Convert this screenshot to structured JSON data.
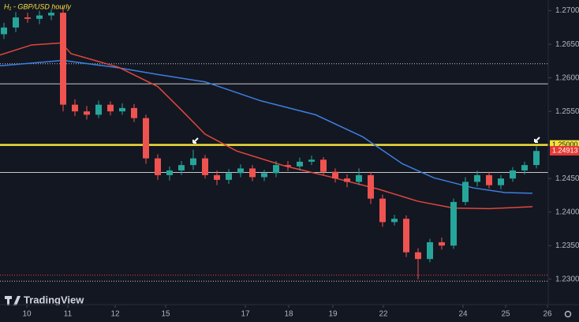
{
  "chart_data": {
    "type": "candlestick",
    "title": "H₁ - GBP/USD hourly",
    "watermark": "TradingView",
    "xlim": [
      0,
      139
    ],
    "ylim": [
      1.2262,
      1.2716
    ],
    "xticks": [
      {
        "value": 6.8,
        "label": "10"
      },
      {
        "value": 17.2,
        "label": "11"
      },
      {
        "value": 29.2,
        "label": "12"
      },
      {
        "value": 42,
        "label": "15"
      },
      {
        "value": 62.2,
        "label": "17"
      },
      {
        "value": 73.2,
        "label": "18"
      },
      {
        "value": 84.4,
        "label": "19"
      },
      {
        "value": 97.2,
        "label": "22"
      },
      {
        "value": 117.4,
        "label": "24"
      },
      {
        "value": 128.2,
        "label": "25"
      },
      {
        "value": 138.8,
        "label": "26"
      }
    ],
    "yticks": [
      {
        "value": 1.27,
        "label": "1.27000"
      },
      {
        "value": 1.265,
        "label": "1.26500"
      },
      {
        "value": 1.26,
        "label": "1.26000"
      },
      {
        "value": 1.255,
        "label": "1.25500"
      },
      {
        "value": 1.25,
        "label": "1.25000"
      },
      {
        "value": 1.245,
        "label": "1.24500"
      },
      {
        "value": 1.24,
        "label": "1.24000"
      },
      {
        "value": 1.235,
        "label": "1.23500"
      },
      {
        "value": 1.23,
        "label": "1.23000"
      }
    ],
    "up_color": "#26a69a",
    "down_color": "#ef5350",
    "x": [
      1,
      4,
      7,
      10,
      13,
      16,
      19,
      22,
      25,
      28,
      31,
      34,
      37,
      40,
      43,
      46,
      49,
      52,
      55,
      58,
      61,
      64,
      67,
      70,
      73,
      76,
      79,
      82,
      85,
      88,
      91,
      94,
      97,
      100,
      103,
      106,
      109,
      112,
      115,
      118,
      121,
      124,
      127,
      130,
      133,
      136
    ],
    "open": [
      1.2665,
      1.2675,
      1.269,
      1.2688,
      1.2693,
      1.2697,
      1.256,
      1.255,
      1.2545,
      1.256,
      1.255,
      1.2555,
      1.254,
      1.248,
      1.2455,
      1.2462,
      1.247,
      1.248,
      1.2455,
      1.2448,
      1.2458,
      1.2465,
      1.2452,
      1.2458,
      1.247,
      1.2468,
      1.2475,
      1.2478,
      1.246,
      1.245,
      1.2445,
      1.2455,
      1.242,
      1.2385,
      1.239,
      1.234,
      1.233,
      1.2355,
      1.235,
      1.2415,
      1.2445,
      1.2455,
      1.244,
      1.245,
      1.2462,
      1.247
    ],
    "high": [
      1.2682,
      1.2698,
      1.2697,
      1.27,
      1.2702,
      1.2705,
      1.2568,
      1.2558,
      1.2566,
      1.2565,
      1.2562,
      1.2561,
      1.2545,
      1.2486,
      1.2468,
      1.2476,
      1.2493,
      1.2485,
      1.2462,
      1.2464,
      1.2471,
      1.247,
      1.2463,
      1.2476,
      1.2476,
      1.2481,
      1.2484,
      1.2482,
      1.2465,
      1.2456,
      1.2465,
      1.246,
      1.2426,
      1.2396,
      1.2395,
      1.2346,
      1.236,
      1.2362,
      1.242,
      1.2452,
      1.2462,
      1.246,
      1.2455,
      1.2467,
      1.2475,
      1.2498
    ],
    "low": [
      1.2658,
      1.2668,
      1.2682,
      1.268,
      1.2686,
      1.255,
      1.2543,
      1.2538,
      1.254,
      1.2544,
      1.2545,
      1.2534,
      1.2472,
      1.2448,
      1.2447,
      1.2455,
      1.2463,
      1.245,
      1.244,
      1.2442,
      1.2452,
      1.2446,
      1.2446,
      1.2452,
      1.2461,
      1.2462,
      1.247,
      1.2455,
      1.2444,
      1.2437,
      1.244,
      1.2412,
      1.2378,
      1.238,
      1.2333,
      1.23,
      1.2325,
      1.2344,
      1.2345,
      1.241,
      1.2438,
      1.2435,
      1.2434,
      1.2445,
      1.2456,
      1.2465
    ],
    "close": [
      1.2675,
      1.269,
      1.2688,
      1.2693,
      1.2697,
      1.256,
      1.255,
      1.2545,
      1.256,
      1.255,
      1.2555,
      1.254,
      1.248,
      1.2455,
      1.2462,
      1.247,
      1.248,
      1.2455,
      1.2448,
      1.2458,
      1.2465,
      1.2452,
      1.2458,
      1.247,
      1.2468,
      1.2475,
      1.2478,
      1.246,
      1.245,
      1.2445,
      1.2455,
      1.242,
      1.2385,
      1.239,
      1.234,
      1.233,
      1.2355,
      1.235,
      1.2415,
      1.2445,
      1.2455,
      1.244,
      1.245,
      1.2462,
      1.247,
      1.2491
    ],
    "lines": [
      {
        "color": "#3d7fe0",
        "x": [
          0,
          16,
          30,
          40,
          52,
          66,
          80,
          92,
          102,
          110,
          120,
          128,
          135
        ],
        "values": [
          1.2618,
          1.2626,
          1.2615,
          1.2605,
          1.2594,
          1.2566,
          1.2545,
          1.2512,
          1.2472,
          1.2451,
          1.2436,
          1.2429,
          1.2428
        ]
      },
      {
        "color": "#e0473c",
        "x": [
          0,
          8,
          15.6,
          18,
          30,
          40,
          46,
          52,
          60,
          72,
          84,
          96,
          106,
          115,
          124,
          135
        ],
        "values": [
          1.2634,
          1.2649,
          1.2652,
          1.2636,
          1.2616,
          1.2587,
          1.2552,
          1.2516,
          1.2491,
          1.2469,
          1.2452,
          1.2434,
          1.2416,
          1.2406,
          1.2405,
          1.2408
        ]
      }
    ],
    "levels": [
      {
        "value": 1.2621,
        "color": "#c8c8c8",
        "style": "dotted"
      },
      {
        "value": 1.2591,
        "color": "#c8c8c8",
        "style": "solid"
      },
      {
        "value": 1.25,
        "color": "#f5e13a",
        "style": "thick"
      },
      {
        "value": 1.2459,
        "color": "#c8c8c8",
        "style": "solid"
      },
      {
        "value": 1.2306,
        "color": "#e0473c",
        "style": "dotted"
      },
      {
        "value": 1.2297,
        "color": "#c8c8c8",
        "style": "dotted"
      }
    ],
    "price_labels": [
      {
        "value": 1.25,
        "label": "1.25000",
        "color": "#f5e13a",
        "text_color": "#131722"
      },
      {
        "value": 1.24913,
        "label": "1.24913",
        "color": "#e53935",
        "text_color": "#ffffff"
      }
    ]
  }
}
